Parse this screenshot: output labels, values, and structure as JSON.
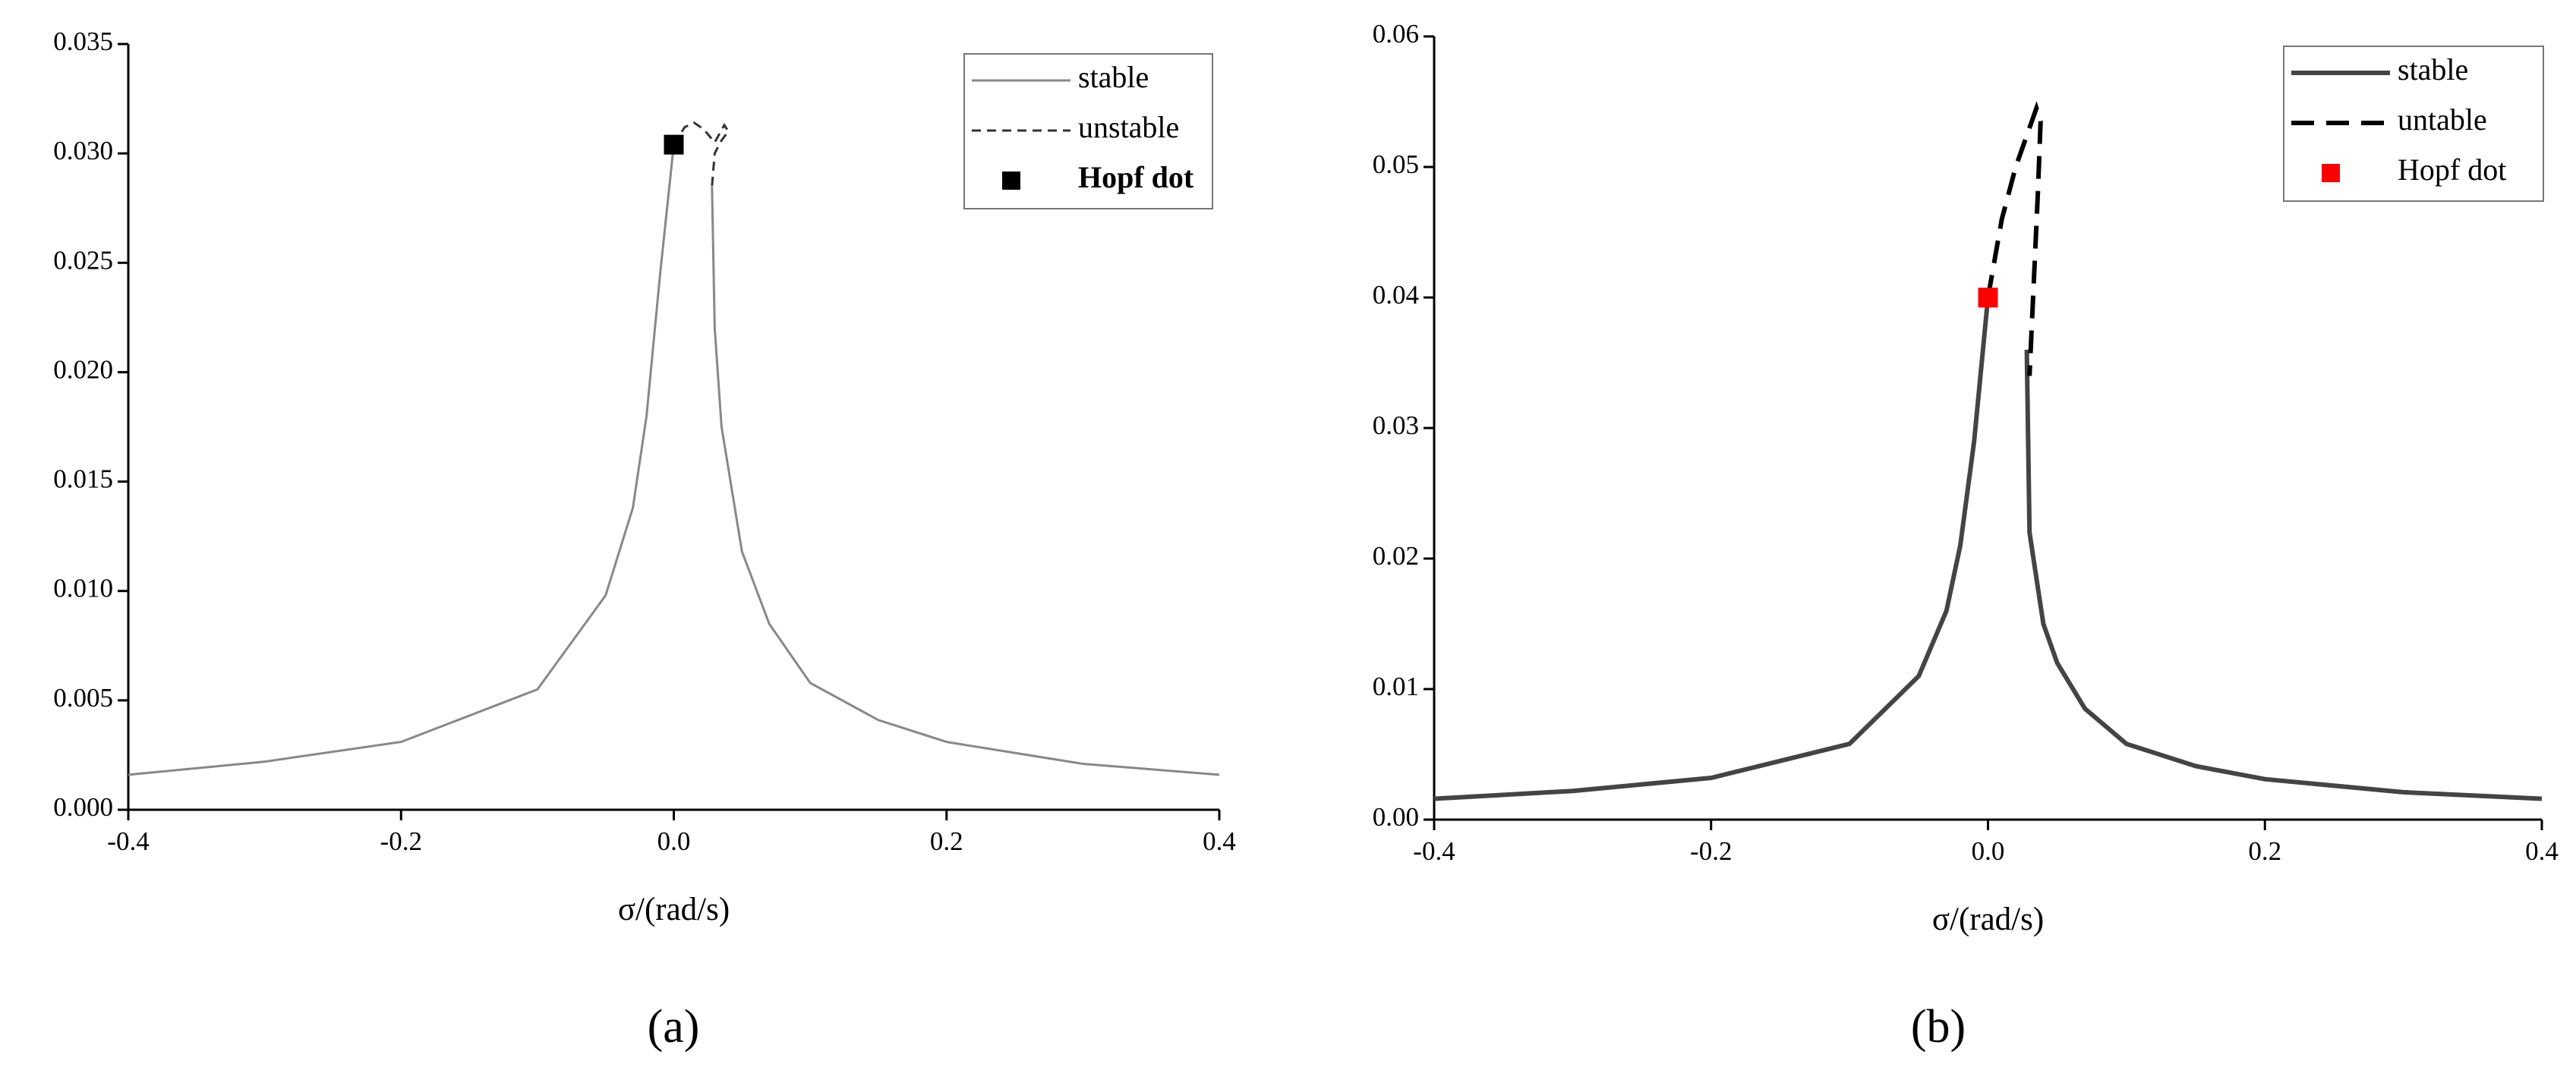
{
  "chart_data": [
    {
      "type": "line",
      "panel_label": "(a)",
      "xlabel": "σ/(rad/s)",
      "xlim": [
        -0.4,
        0.4
      ],
      "xticks": [
        -0.4,
        -0.2,
        {
          "value": 0,
          "label": "0.0"
        },
        0.2,
        0.4
      ],
      "ylim": [
        0,
        0.035
      ],
      "yticks": [
        {
          "value": 0,
          "label": "0.000"
        },
        {
          "value": 0.005,
          "label": "0.005"
        },
        {
          "value": 0.01,
          "label": "0.010"
        },
        {
          "value": 0.015,
          "label": "0.015"
        },
        {
          "value": 0.02,
          "label": "0.020"
        },
        {
          "value": 0.025,
          "label": "0.025"
        },
        {
          "value": 0.03,
          "label": "0.030"
        },
        {
          "value": 0.035,
          "label": "0.035"
        }
      ],
      "legend": "upper right",
      "series": [
        {
          "name": "stable",
          "color": "#888888",
          "dash": false,
          "x": [
            -0.4,
            -0.3,
            -0.2,
            -0.1,
            -0.05,
            -0.03,
            -0.02,
            -0.01,
            0,
            0.015,
            0.028,
            0.03,
            0.035,
            0.05,
            0.07,
            0.1,
            0.15,
            0.2,
            0.3,
            0.4
          ],
          "values": [
            0.0016,
            0.0022,
            0.0031,
            0.0055,
            0.0098,
            0.0138,
            0.018,
            0.0245,
            0.0304,
            null,
            0.0285,
            0.022,
            0.0175,
            0.0118,
            0.0085,
            0.0058,
            0.0041,
            0.0031,
            0.0021,
            0.0016
          ]
        },
        {
          "name": "unstable",
          "color": "#333333",
          "dash": true,
          "x": [
            0,
            0.008,
            0.015,
            0.022,
            0.03,
            0.037,
            0.04,
            0.035,
            0.03,
            0.028
          ],
          "values": [
            0.0304,
            0.0312,
            0.0314,
            0.0311,
            0.0305,
            0.0313,
            0.031,
            0.0306,
            0.03,
            0.0285
          ]
        },
        {
          "name": "Hopf dot",
          "color": "#000000",
          "marker": "square",
          "x": [
            0
          ],
          "values": [
            0.0304
          ]
        }
      ]
    },
    {
      "type": "line",
      "panel_label": "(b)",
      "xlabel": "σ/(rad/s)",
      "xlim": [
        -0.4,
        0.4
      ],
      "xticks": [
        -0.4,
        -0.2,
        {
          "value": 0,
          "label": "0.0"
        },
        0.2,
        0.4
      ],
      "ylim": [
        0,
        0.06
      ],
      "yticks": [
        {
          "value": 0,
          "label": "0.00"
        },
        0.01,
        0.02,
        0.03,
        0.04,
        0.05,
        0.06
      ],
      "legend": "upper right",
      "series": [
        {
          "name": "stable",
          "color": "#444444",
          "dash": false,
          "x": [
            -0.4,
            -0.3,
            -0.2,
            -0.1,
            -0.05,
            -0.03,
            -0.02,
            -0.01,
            0,
            0.015,
            0.028,
            0.03,
            0.04,
            0.05,
            0.07,
            0.1,
            0.15,
            0.2,
            0.3,
            0.4
          ],
          "values": [
            0.0016,
            0.0022,
            0.0032,
            0.0058,
            0.011,
            0.016,
            0.021,
            0.029,
            0.04,
            null,
            0.036,
            0.022,
            0.015,
            0.012,
            0.0085,
            0.0058,
            0.0041,
            0.0031,
            0.0021,
            0.0016
          ]
        },
        {
          "name": "untable",
          "color": "#000000",
          "dash": true,
          "x": [
            0,
            0.01,
            0.02,
            0.03,
            0.035,
            0.038,
            0.036,
            0.033,
            0.03
          ],
          "values": [
            0.04,
            0.046,
            0.05,
            0.053,
            0.0545,
            0.0535,
            0.048,
            0.041,
            0.034
          ]
        },
        {
          "name": "Hopf dot",
          "color": "#ff0000",
          "marker": "square",
          "x": [
            0
          ],
          "values": [
            0.04
          ]
        }
      ]
    }
  ]
}
